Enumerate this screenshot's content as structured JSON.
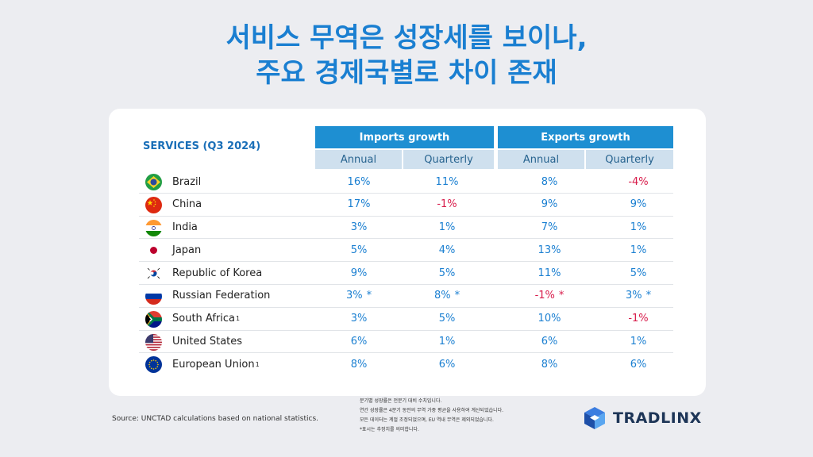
{
  "title": {
    "line1": "서비스 무역은 성장세를 보이나,",
    "line2": "주요 경제국별로 차이 존재"
  },
  "table": {
    "section_label": "SERVICES (Q3 2024)",
    "groups": [
      {
        "label": "Imports growth"
      },
      {
        "label": "Exports growth"
      }
    ],
    "sub_headers": [
      "Annual",
      "Quarterly",
      "Annual",
      "Quarterly"
    ],
    "rows": [
      {
        "country": "Brazil",
        "sup": "",
        "flag": "brazil-flag-icon",
        "values": [
          "16%",
          "11%",
          "8%",
          "-4%"
        ],
        "stars": [
          "",
          "",
          "",
          ""
        ]
      },
      {
        "country": "China",
        "sup": "",
        "flag": "china-flag-icon",
        "values": [
          "17%",
          "-1%",
          "9%",
          "9%"
        ],
        "stars": [
          "",
          "",
          "",
          ""
        ]
      },
      {
        "country": "India",
        "sup": "",
        "flag": "india-flag-icon",
        "values": [
          "3%",
          "1%",
          "7%",
          "1%"
        ],
        "stars": [
          "",
          "",
          "",
          ""
        ]
      },
      {
        "country": "Japan",
        "sup": "",
        "flag": "japan-flag-icon",
        "values": [
          "5%",
          "4%",
          "13%",
          "1%"
        ],
        "stars": [
          "",
          "",
          "",
          ""
        ]
      },
      {
        "country": "Republic of Korea",
        "sup": "",
        "flag": "korea-flag-icon",
        "values": [
          "9%",
          "5%",
          "11%",
          "5%"
        ],
        "stars": [
          "",
          "",
          "",
          ""
        ]
      },
      {
        "country": "Russian Federation",
        "sup": "",
        "flag": "russia-flag-icon",
        "values": [
          "3%",
          "8%",
          "-1%",
          "3%"
        ],
        "stars": [
          "*",
          "*",
          "*",
          "*"
        ]
      },
      {
        "country": "South Africa",
        "sup": "1",
        "flag": "south-africa-flag-icon",
        "values": [
          "3%",
          "5%",
          "10%",
          "-1%"
        ],
        "stars": [
          "",
          "",
          "",
          ""
        ]
      },
      {
        "country": "United States",
        "sup": "",
        "flag": "usa-flag-icon",
        "values": [
          "6%",
          "1%",
          "6%",
          "1%"
        ],
        "stars": [
          "",
          "",
          "",
          ""
        ]
      },
      {
        "country": "European Union",
        "sup": "1",
        "flag": "eu-flag-icon",
        "values": [
          "8%",
          "6%",
          "8%",
          "6%"
        ],
        "stars": [
          "",
          "",
          "",
          ""
        ]
      }
    ]
  },
  "colors": {
    "positive": "#1a7fd1",
    "negative": "#d81b4a",
    "header": "#1e8fd2",
    "subheader": "#cfe0ee"
  },
  "source": "Source: UNCTAD calculations based on national statistics.",
  "notes": [
    "분기별 성장률은 전분기 대비 수치입니다.",
    "연간 성장률은 4분기 동안의 무역 가중 평균을 사용하여 계산되었습니다.",
    "모든 데이터는 계절 조정되었으며, EU 역내 무역은 제외되었습니다.",
    "*표시는 추정치를 의미합니다."
  ],
  "logo": {
    "text": "TRADLINX",
    "icon": "tradlinx-logo-icon"
  }
}
